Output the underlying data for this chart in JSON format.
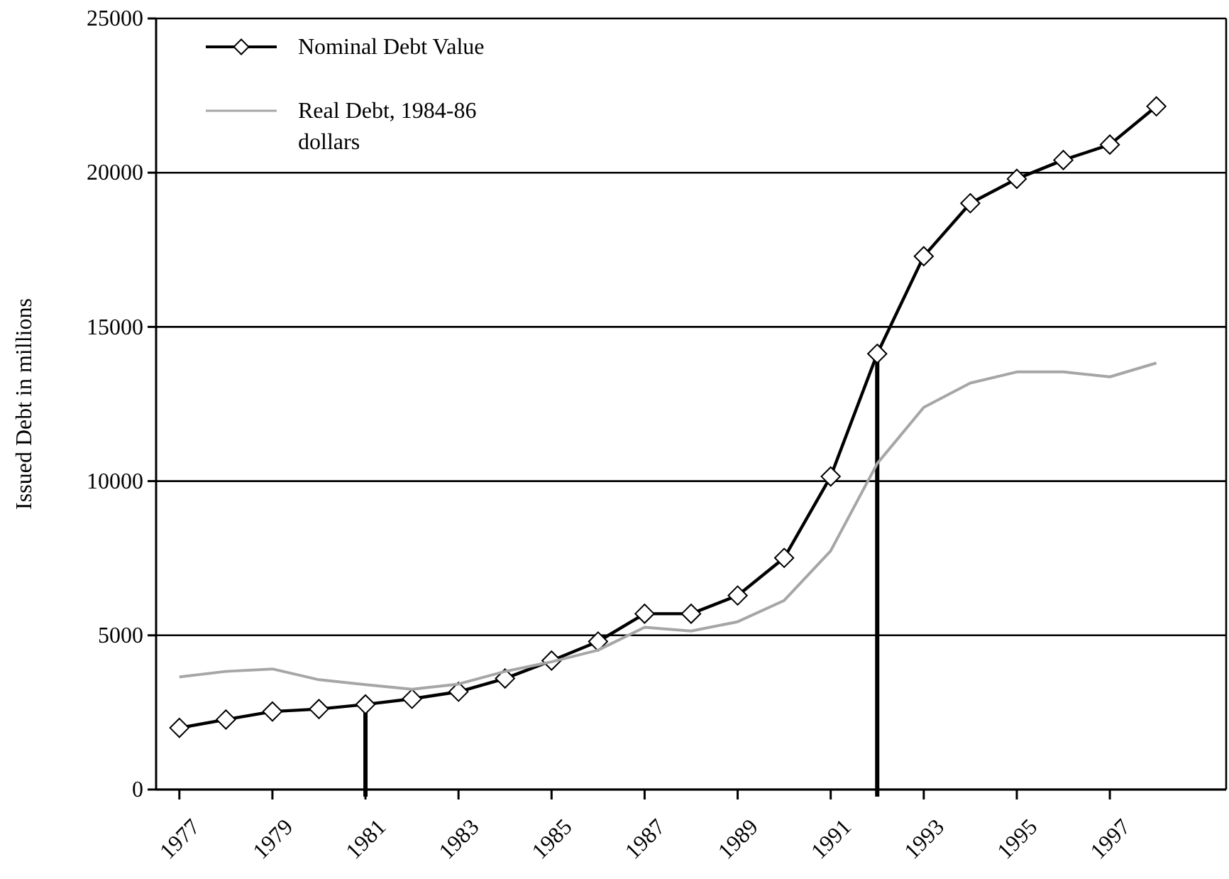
{
  "chart_data": {
    "type": "line",
    "ylabel": "Issued Debt in millions",
    "x": [
      1977,
      1978,
      1979,
      1980,
      1981,
      1982,
      1983,
      1984,
      1985,
      1986,
      1987,
      1988,
      1989,
      1990,
      1991,
      1992,
      1993,
      1994,
      1995,
      1996,
      1997,
      1998
    ],
    "xlim": [
      1976.5,
      1999.5
    ],
    "xticks": [
      1977,
      1979,
      1981,
      1983,
      1985,
      1987,
      1989,
      1991,
      1993,
      1995,
      1997
    ],
    "series": [
      {
        "name": "Nominal Debt Value",
        "color": "#000000",
        "marker": "diamond",
        "values": [
          2000,
          2270,
          2530,
          2610,
          2760,
          2940,
          3170,
          3600,
          4180,
          4800,
          5700,
          5700,
          6290,
          7510,
          10150,
          14130,
          17290,
          19010,
          19800,
          20410,
          20910,
          22150
        ]
      },
      {
        "name": "Real Debt, 1984-86 dollars",
        "color": "#a6a6a6",
        "marker": "none",
        "values": [
          3650,
          3830,
          3910,
          3560,
          3400,
          3250,
          3420,
          3830,
          4140,
          4520,
          5260,
          5140,
          5440,
          6130,
          7740,
          10570,
          12390,
          13180,
          13540,
          13540,
          13380,
          13830
        ]
      }
    ],
    "ref_lines": [
      {
        "axis": "x",
        "value": 1981,
        "color": "#000000"
      },
      {
        "axis": "x",
        "value": 1992,
        "color": "#000000"
      }
    ],
    "ylim": [
      0,
      25000
    ],
    "yticks": [
      0,
      5000,
      10000,
      15000,
      20000,
      25000
    ],
    "grid": "y",
    "legend": "top left",
    "line_style": "solid"
  }
}
